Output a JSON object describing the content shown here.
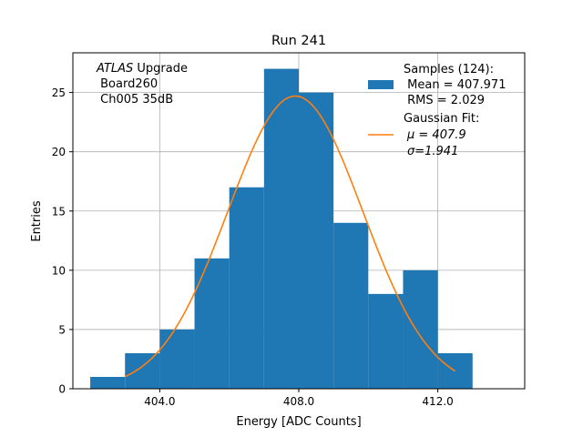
{
  "chart_data": {
    "type": "bar",
    "title": "Run 241",
    "xlabel": "Energy [ADC Counts]",
    "ylabel": "Entries",
    "xlim": [
      401.5,
      414.5
    ],
    "ylim": [
      0,
      28.35
    ],
    "grid": true,
    "x_ticks": [
      {
        "value": 404,
        "label": "404.0"
      },
      {
        "value": 408,
        "label": "408.0"
      },
      {
        "value": 412,
        "label": "412.0"
      }
    ],
    "y_ticks": [
      {
        "value": 0,
        "label": "0"
      },
      {
        "value": 5,
        "label": "5"
      },
      {
        "value": 10,
        "label": "10"
      },
      {
        "value": 15,
        "label": "15"
      },
      {
        "value": 20,
        "label": "20"
      },
      {
        "value": 25,
        "label": "25"
      }
    ],
    "bins": [
      {
        "x0": 402,
        "x1": 403,
        "count": 1
      },
      {
        "x0": 403,
        "x1": 404,
        "count": 3
      },
      {
        "x0": 404,
        "x1": 405,
        "count": 5
      },
      {
        "x0": 405,
        "x1": 406,
        "count": 11
      },
      {
        "x0": 406,
        "x1": 407,
        "count": 17
      },
      {
        "x0": 407,
        "x1": 408,
        "count": 27
      },
      {
        "x0": 408,
        "x1": 409,
        "count": 25
      },
      {
        "x0": 409,
        "x1": 410,
        "count": 14
      },
      {
        "x0": 410,
        "x1": 411,
        "count": 8
      },
      {
        "x0": 411,
        "x1": 412,
        "count": 10
      },
      {
        "x0": 412,
        "x1": 413,
        "count": 3
      }
    ],
    "gaussian_fit": {
      "amplitude": 24.7,
      "mu": 407.9,
      "sigma": 1.941,
      "x_range": [
        403,
        412.5
      ]
    },
    "colors": {
      "histogram": "#1f77b4",
      "fit": "#ff7f0e",
      "grid": "#b0b0b0"
    },
    "annotation": {
      "brand": "ATLAS",
      "line1_rest": " Upgrade",
      "line2": " Board260",
      "line3": " Ch005 35dB"
    },
    "legend": {
      "placement": "top-right",
      "samples_lines": [
        "Samples (124):",
        " Mean = 407.971",
        " RMS = 2.029"
      ],
      "fit_lines": [
        "Gaussian Fit:",
        "μ = 407.9",
        "σ=1.941"
      ]
    }
  }
}
